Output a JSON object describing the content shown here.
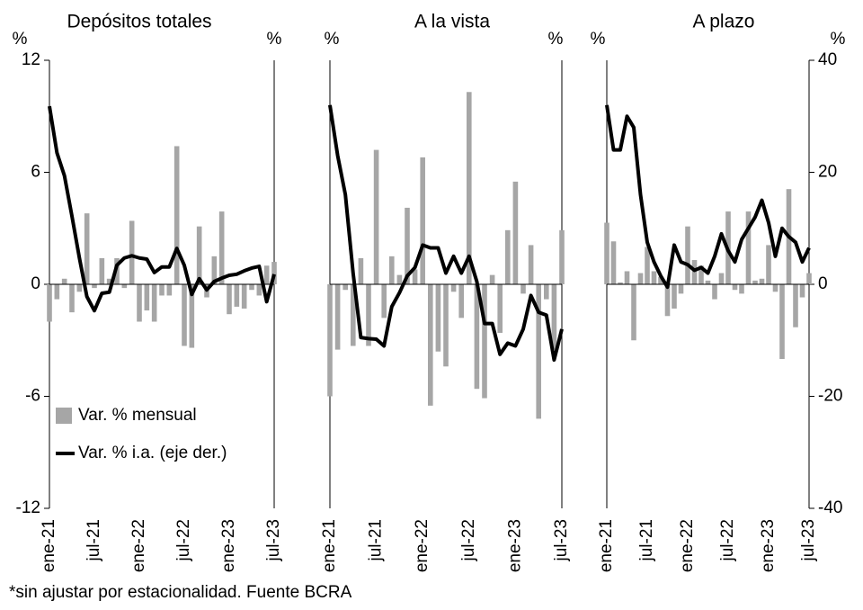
{
  "chart_data": [
    {
      "type": "bar_line",
      "title": "Depósitos totales",
      "y_unit": "%",
      "y2_unit": "%",
      "categories": [
        "ene-21",
        null,
        null,
        null,
        null,
        null,
        "jul-21",
        null,
        null,
        null,
        null,
        null,
        "ene-22",
        null,
        null,
        null,
        null,
        null,
        "jul-22",
        null,
        null,
        null,
        null,
        null,
        "ene-23",
        null,
        null,
        null,
        null,
        null,
        "jul-23"
      ],
      "ylim": [
        -12,
        12
      ],
      "yticks": [
        -12,
        -6,
        0,
        6,
        12
      ],
      "y2lim": [
        -40,
        40
      ],
      "legend": "lower left",
      "series": [
        {
          "name": "Var. % mensual",
          "color": "#a6a6a6",
          "values": [
            -2.0,
            -0.8,
            0.3,
            -1.5,
            -0.4,
            3.8,
            -0.2,
            1.4,
            0.3,
            1.4,
            -0.2,
            3.4,
            -2.0,
            -1.4,
            -2.0,
            -0.6,
            -0.6,
            7.4,
            -3.3,
            -3.4,
            3.1,
            -0.7,
            1.5,
            3.9,
            -1.6,
            -1.2,
            -1.3,
            -0.3,
            -0.6,
            1.0,
            1.2
          ]
        },
        {
          "name": "Var. % i.a. (eje der.)",
          "color": "#000000",
          "axis": "y2",
          "values": [
            31.8,
            23.5,
            19.4,
            12.2,
            4.7,
            -2.2,
            -4.7,
            -1.6,
            -1.4,
            3.4,
            4.7,
            5.1,
            4.7,
            4.5,
            2.1,
            3.1,
            3.1,
            6.4,
            3.4,
            -1.8,
            1.0,
            -1.0,
            0.5,
            1.1,
            1.6,
            1.8,
            2.4,
            2.9,
            3.2,
            -3.1,
            1.8
          ]
        }
      ]
    },
    {
      "type": "bar_line",
      "title": "A la vista",
      "y_unit": "%",
      "y2_unit": "%",
      "categories": [
        "ene-21",
        null,
        null,
        null,
        null,
        null,
        "jul-21",
        null,
        null,
        null,
        null,
        null,
        "ene-22",
        null,
        null,
        null,
        null,
        null,
        "jul-22",
        null,
        null,
        null,
        null,
        null,
        "ene-23",
        null,
        null,
        null,
        null,
        null,
        "jul-23"
      ],
      "ylim": [
        -12,
        12
      ],
      "y2lim": [
        -40,
        40
      ],
      "series": [
        {
          "color": "#a6a6a6",
          "values": [
            -6.0,
            -3.5,
            -0.3,
            -3.3,
            1.4,
            -3.3,
            7.2,
            -1.8,
            1.5,
            0.5,
            4.1,
            0.8,
            6.8,
            -6.5,
            -3.6,
            -4.4,
            -0.4,
            -1.8,
            10.3,
            -5.6,
            -6.1,
            0.5,
            -2.6,
            2.9,
            5.5,
            -0.5,
            2.1,
            -7.2,
            -0.8,
            -3.5,
            2.9
          ]
        },
        {
          "color": "#000000",
          "axis": "y2",
          "values": [
            32,
            23,
            16,
            2,
            -9.5,
            -9.7,
            -9.8,
            -11,
            -4,
            -1.5,
            1.5,
            3,
            7,
            6.5,
            6.5,
            2,
            5,
            2,
            5,
            0.5,
            -7,
            -7,
            -12.5,
            -10.5,
            -11,
            -8,
            -2,
            -5,
            -5.5,
            -13.5,
            -8
          ]
        }
      ]
    },
    {
      "type": "bar_line",
      "title": "A plazo",
      "y_unit": "%",
      "y2_unit": "%",
      "categories": [
        "ene-21",
        null,
        null,
        null,
        null,
        null,
        "jul-21",
        null,
        null,
        null,
        null,
        null,
        "ene-22",
        null,
        null,
        null,
        null,
        null,
        "jul-22",
        null,
        null,
        null,
        null,
        null,
        "ene-23",
        null,
        null,
        null,
        null,
        null,
        "jul-23"
      ],
      "ylim": [
        -12,
        12
      ],
      "y2lim": [
        -40,
        40
      ],
      "y2ticks": [
        -40,
        -20,
        0,
        20,
        40
      ],
      "series": [
        {
          "color": "#a6a6a6",
          "values": [
            3.3,
            2.3,
            0.1,
            0.7,
            -3.0,
            0.6,
            2.0,
            0.7,
            0.4,
            -1.7,
            -1.3,
            -0.5,
            3.1,
            1.3,
            1.0,
            0.2,
            -0.8,
            0.6,
            3.9,
            -0.3,
            -0.5,
            3.9,
            0.2,
            0.3,
            2.1,
            -0.4,
            -4.0,
            5.1,
            -2.3,
            -0.7,
            0.6
          ]
        },
        {
          "color": "#000000",
          "axis": "y2",
          "values": [
            32,
            24,
            24,
            30,
            28,
            16,
            7.5,
            4,
            1.5,
            -0.5,
            7,
            4,
            3.5,
            2.5,
            3,
            2,
            5,
            9,
            6,
            4,
            8,
            10,
            12,
            15,
            11,
            5,
            10,
            8.5,
            7.5,
            4,
            6.5
          ]
        }
      ]
    }
  ],
  "footnote": "*sin ajustar por estacionalidad. Fuente BCRA"
}
